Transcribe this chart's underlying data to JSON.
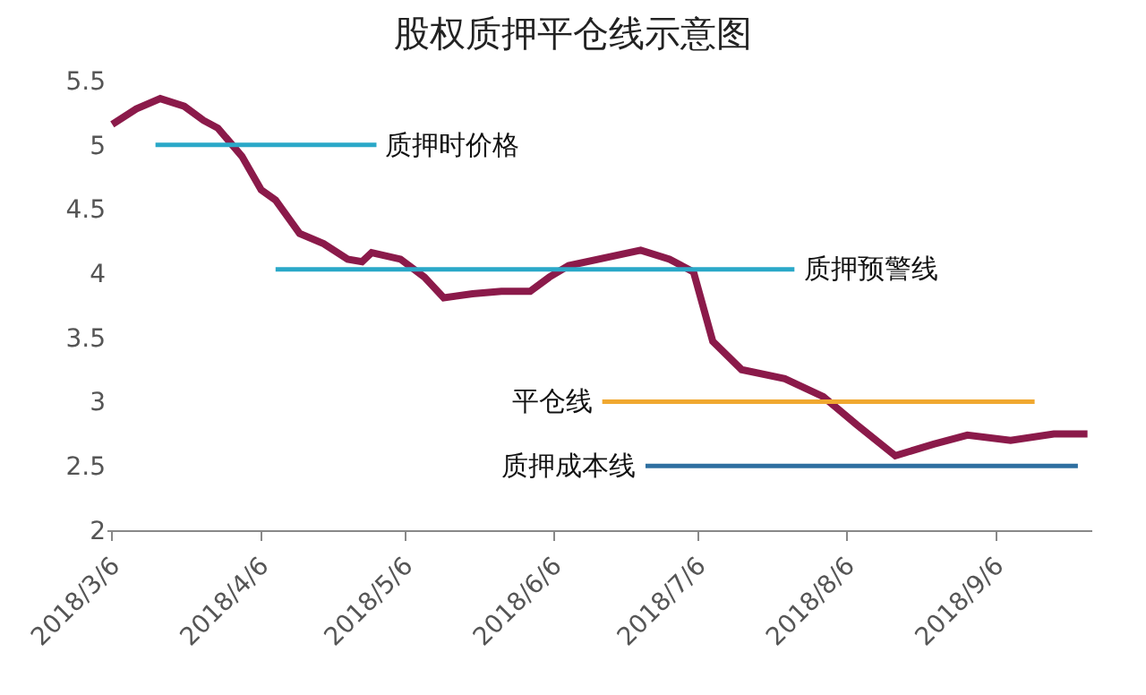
{
  "chart_data": {
    "type": "line",
    "title": "股权质押平仓线示意图",
    "xlim": [
      "2018-03-05",
      "2018-09-26"
    ],
    "xticks": [
      {
        "value": "2018-03-06",
        "label": "2018/3/6"
      },
      {
        "value": "2018-04-06",
        "label": "2018/4/6"
      },
      {
        "value": "2018-05-06",
        "label": "2018/5/6"
      },
      {
        "value": "2018-06-06",
        "label": "2018/6/6"
      },
      {
        "value": "2018-07-06",
        "label": "2018/7/6"
      },
      {
        "value": "2018-08-06",
        "label": "2018/8/6"
      },
      {
        "value": "2018-09-06",
        "label": "2018/9/6"
      }
    ],
    "ylim": [
      2,
      5.5
    ],
    "yticks": [
      2,
      2.5,
      3,
      3.5,
      4,
      4.5,
      5,
      5.5
    ],
    "grid": false,
    "legend": false,
    "marker": "none",
    "line_style": "solid",
    "series": [
      {
        "color": "#8b1a4a",
        "x": [
          "2018-03-06",
          "2018-03-11",
          "2018-03-16",
          "2018-03-21",
          "2018-03-25",
          "2018-03-28",
          "2018-04-02",
          "2018-04-06",
          "2018-04-09",
          "2018-04-14",
          "2018-04-19",
          "2018-04-24",
          "2018-04-27",
          "2018-04-29",
          "2018-05-05",
          "2018-05-10",
          "2018-05-14",
          "2018-05-20",
          "2018-05-26",
          "2018-06-01",
          "2018-06-05",
          "2018-06-09",
          "2018-06-24",
          "2018-06-30",
          "2018-07-05",
          "2018-07-09",
          "2018-07-15",
          "2018-07-24",
          "2018-08-01",
          "2018-08-08",
          "2018-08-16",
          "2018-08-24",
          "2018-08-31",
          "2018-09-09",
          "2018-09-18",
          "2018-09-25"
        ],
        "values": [
          5.16,
          5.28,
          5.36,
          5.3,
          5.19,
          5.13,
          4.91,
          4.65,
          4.57,
          4.31,
          4.23,
          4.11,
          4.09,
          4.16,
          4.11,
          3.97,
          3.81,
          3.84,
          3.86,
          3.86,
          3.97,
          4.06,
          4.18,
          4.11,
          4.01,
          3.47,
          3.25,
          3.18,
          3.04,
          2.82,
          2.58,
          2.67,
          2.74,
          2.7,
          2.75,
          2.75
        ]
      },
      {
        "name": "质押时价格",
        "color": "#2aa8c8",
        "x": [
          "2018-03-15",
          "2018-04-30"
        ],
        "values": [
          5,
          5
        ]
      },
      {
        "name": "质押预警线",
        "color": "#2aa8c8",
        "x": [
          "2018-04-09",
          "2018-07-26"
        ],
        "values": [
          4.03,
          4.03
        ]
      },
      {
        "name": "平仓线",
        "color": "#f0a830",
        "x": [
          "2018-06-16",
          "2018-09-14"
        ],
        "values": [
          3,
          3
        ]
      },
      {
        "name": "质押成本线",
        "color": "#2e6fa0",
        "x": [
          "2018-06-25",
          "2018-09-23"
        ],
        "values": [
          2.5,
          2.5
        ]
      }
    ]
  }
}
